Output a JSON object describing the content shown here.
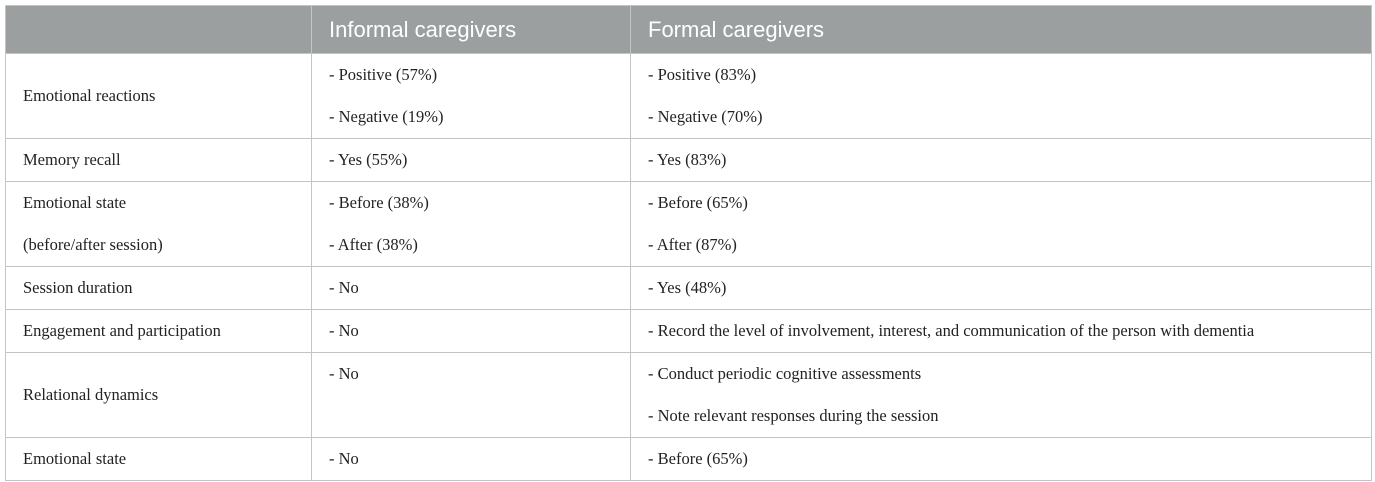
{
  "table": {
    "columns": [
      "Informal caregivers",
      "Formal caregivers"
    ],
    "rows": [
      {
        "label": [
          "Emotional reactions"
        ],
        "informal": [
          "- Positive (57%)",
          "- Negative (19%)"
        ],
        "formal": [
          "- Positive (83%)",
          "- Negative (70%)"
        ]
      },
      {
        "label": [
          "Memory recall"
        ],
        "informal": [
          "- Yes (55%)"
        ],
        "formal": [
          "- Yes (83%)"
        ]
      },
      {
        "label": [
          "Emotional state",
          "(before/after session)"
        ],
        "informal": [
          "- Before (38%)",
          "- After (38%)"
        ],
        "formal": [
          "- Before (65%)",
          "- After (87%)"
        ]
      },
      {
        "label": [
          "Session duration"
        ],
        "informal": [
          "- No"
        ],
        "formal": [
          "- Yes (48%)"
        ]
      },
      {
        "label": [
          "Engagement and participation"
        ],
        "informal": [
          "- No"
        ],
        "formal": [
          "- Record the level of involvement, interest, and communication of the person with dementia"
        ]
      },
      {
        "label": [
          "Relational dynamics"
        ],
        "informal": [
          "- No"
        ],
        "formal": [
          "- Conduct periodic cognitive assessments",
          "- Note relevant responses during the session"
        ]
      },
      {
        "label": [
          "Emotional state"
        ],
        "informal": [
          "- No"
        ],
        "formal": [
          "- Before (65%)"
        ]
      }
    ]
  }
}
